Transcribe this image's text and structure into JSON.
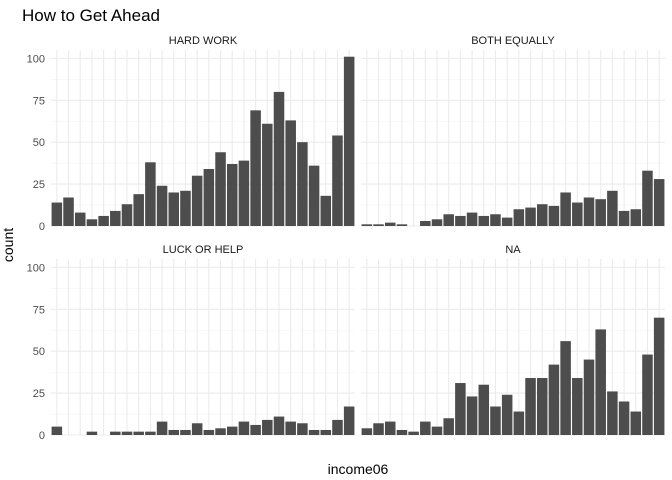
{
  "chart_data": {
    "type": "bar",
    "title": "How to Get Ahead",
    "xlabel": "income06",
    "ylabel": "count",
    "ylim": [
      0,
      105
    ],
    "yticks": [
      0,
      25,
      50,
      75,
      100
    ],
    "grid": true,
    "n_categories": 26,
    "panels": [
      {
        "name": "HARD WORK",
        "values": [
          14,
          17,
          8,
          4,
          6,
          9,
          13,
          19,
          38,
          24,
          20,
          21,
          30,
          34,
          44,
          37,
          39,
          69,
          61,
          80,
          63,
          50,
          36,
          18,
          54,
          101
        ]
      },
      {
        "name": "BOTH EQUALLY",
        "values": [
          1,
          1,
          2,
          1,
          0,
          3,
          4,
          7,
          6,
          8,
          6,
          7,
          5,
          10,
          11,
          13,
          12,
          20,
          14,
          17,
          16,
          21,
          9,
          10,
          33,
          28
        ]
      },
      {
        "name": "LUCK OR HELP",
        "values": [
          5,
          0,
          0,
          2,
          0,
          2,
          2,
          2,
          2,
          8,
          3,
          3,
          7,
          3,
          4,
          5,
          8,
          6,
          9,
          11,
          8,
          7,
          3,
          3,
          9,
          17
        ]
      },
      {
        "name": "NA",
        "values": [
          4,
          7,
          8,
          3,
          2,
          8,
          5,
          10,
          31,
          23,
          30,
          17,
          24,
          14,
          34,
          34,
          42,
          56,
          34,
          45,
          63,
          26,
          20,
          14,
          48,
          70
        ]
      }
    ]
  }
}
